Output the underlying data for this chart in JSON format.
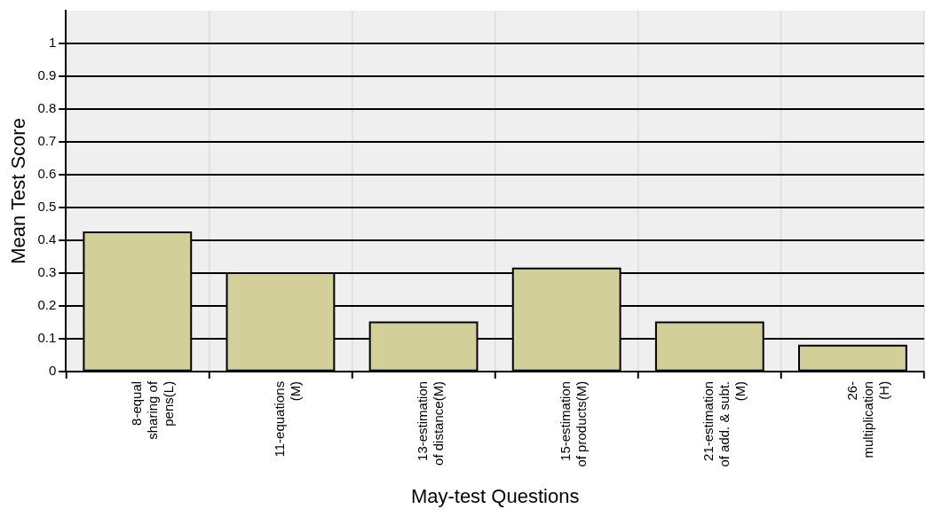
{
  "chart_data": {
    "type": "bar",
    "xlabel": "May-test Questions",
    "ylabel": "Mean Test Score",
    "categories": [
      "8-equal\nsharing of\npens(L)",
      "11-equations\n(M)",
      "13-estimation\nof distance(M)",
      "15-estimation\nof products(M)",
      "21-estimation\nof add. & subt.\n(M)",
      "26-\nmultiplication\n(H)"
    ],
    "values": [
      0.424,
      0.3,
      0.15,
      0.314,
      0.15,
      0.079
    ],
    "color": "#d3cf98",
    "ylim": [
      0,
      1.1
    ],
    "yticks": [
      0,
      0.1,
      0.2,
      0.3,
      0.4,
      0.5,
      0.6,
      0.7,
      0.8,
      0.9,
      1
    ],
    "grid": true
  }
}
